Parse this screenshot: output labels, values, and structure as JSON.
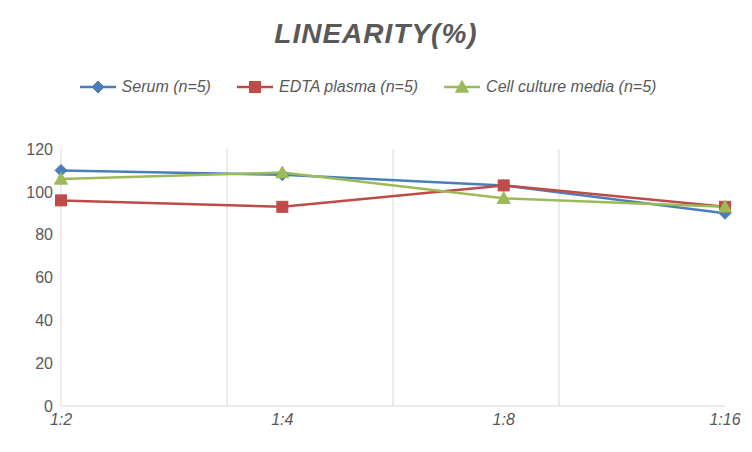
{
  "chart_data": {
    "type": "line",
    "title": "LINEARITY(%)",
    "categories": [
      "1:2",
      "1:4",
      "1:8",
      "1:16"
    ],
    "series": [
      {
        "name": "Serum (n=5)",
        "color": "#4a7ebb",
        "marker": "diamond",
        "values": [
          110,
          108,
          103,
          90
        ]
      },
      {
        "name": "EDTA plasma (n=5)",
        "color": "#be4b48",
        "marker": "square",
        "values": [
          96,
          93,
          103,
          93
        ]
      },
      {
        "name": "Cell culture media (n=5)",
        "color": "#9bbb59",
        "marker": "triangle",
        "values": [
          106,
          109,
          97,
          93
        ]
      }
    ],
    "ylim": [
      0,
      120
    ],
    "yticks": [
      0,
      20,
      40,
      60,
      80,
      100,
      120
    ],
    "grid": true,
    "legend": "top"
  }
}
